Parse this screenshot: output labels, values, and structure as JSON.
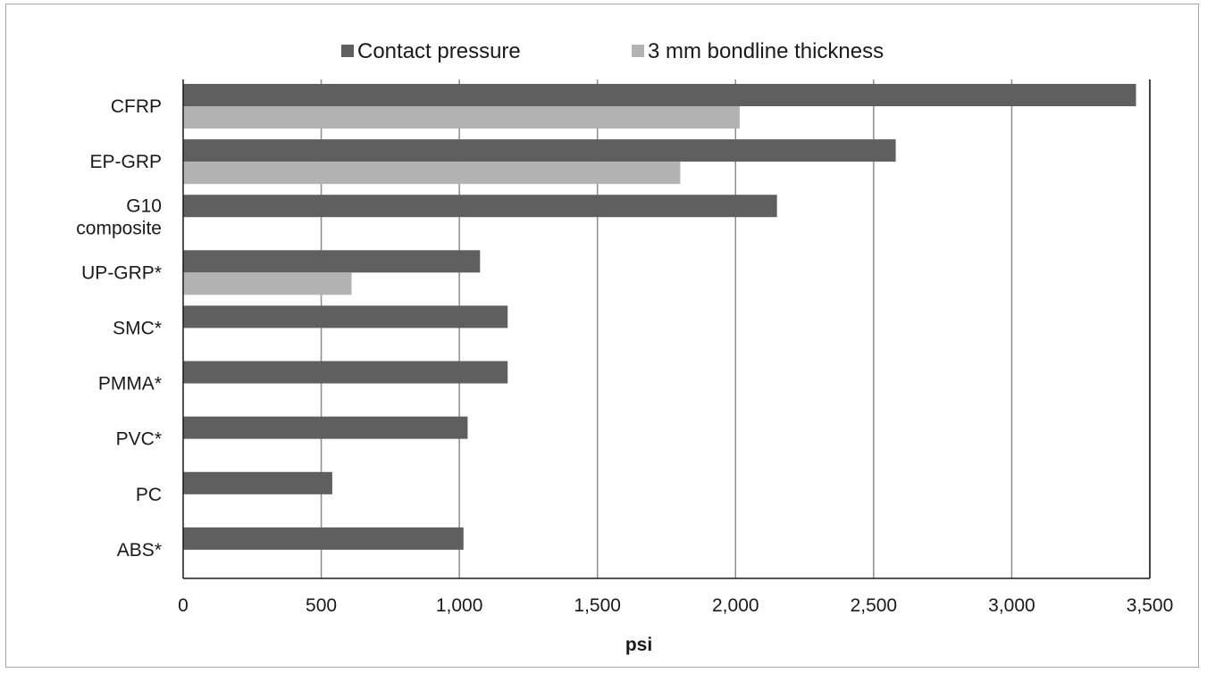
{
  "chart_data": {
    "type": "bar",
    "orientation": "horizontal",
    "categories": [
      "CFRP",
      "EP-GRP",
      "G10 composite",
      "UP-GRP*",
      "SMC*",
      "PMMA*",
      "PVC*",
      "PC",
      "ABS*"
    ],
    "category_lines": [
      [
        "CFRP"
      ],
      [
        "EP-GRP"
      ],
      [
        "G10",
        "composite"
      ],
      [
        "UP-GRP*"
      ],
      [
        "SMC*"
      ],
      [
        "PMMA*"
      ],
      [
        "PVC*"
      ],
      [
        "PC"
      ],
      [
        "ABS*"
      ]
    ],
    "series": [
      {
        "name": "Contact pressure",
        "color": "#5f5f5f",
        "values": [
          3450,
          2580,
          2150,
          1075,
          1175,
          1175,
          1030,
          540,
          1015
        ]
      },
      {
        "name": "3 mm bondline thickness",
        "color": "#b3b3b3",
        "values": [
          2015,
          1800,
          null,
          610,
          null,
          null,
          null,
          null,
          null
        ]
      }
    ],
    "xlabel": "psi",
    "xlim": [
      0,
      3500
    ],
    "xticks": [
      0,
      500,
      1000,
      1500,
      2000,
      2500,
      3000,
      3500
    ],
    "xtick_labels": [
      "0",
      "500",
      "1,000",
      "1,500",
      "2,000",
      "2,500",
      "3,000",
      "3,500"
    ],
    "grid": "vertical",
    "legend_position": "top"
  }
}
